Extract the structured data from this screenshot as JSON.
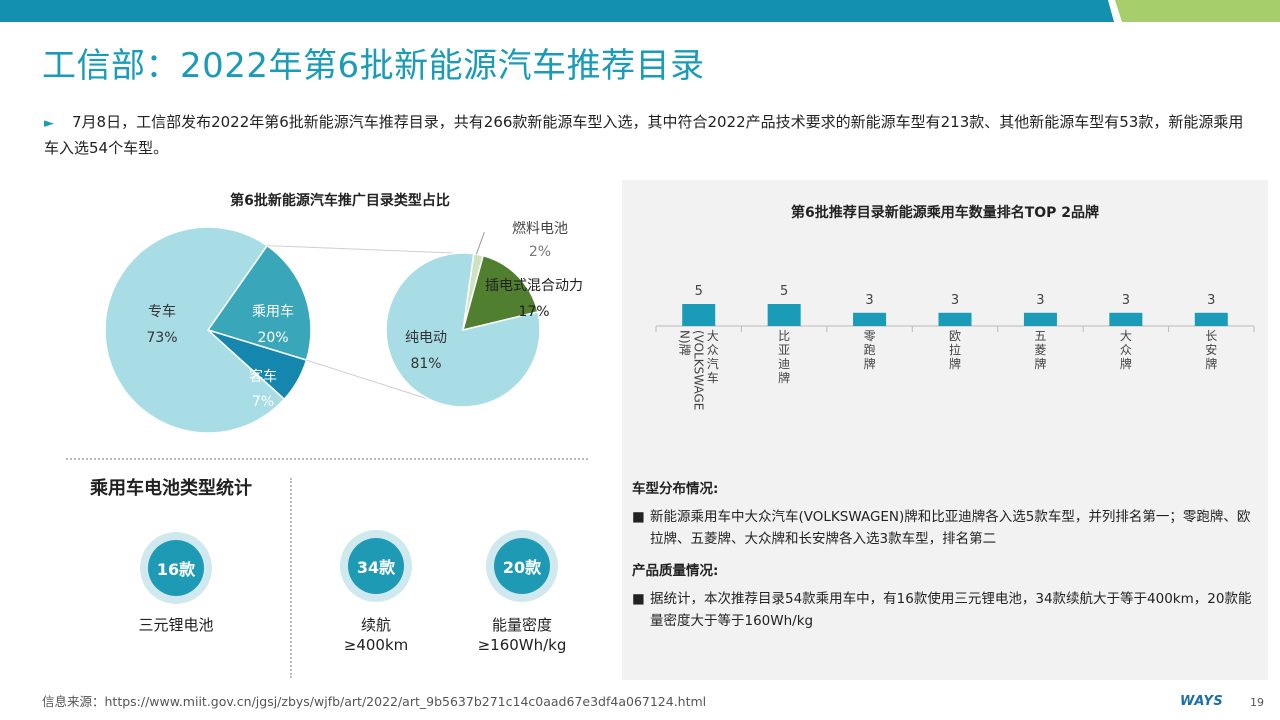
{
  "header": {
    "title": "工信部：2022年第6批新能源汽车推荐目录",
    "colors": {
      "accent": "#1a9bb8",
      "bar_dark": "#138fb0",
      "bar_light": "#9ed37d"
    }
  },
  "intro": {
    "bullet_icon": "triangle-right-icon",
    "text": "7月8日，工信部发布2022年第6批新能源汽车推荐目录，共有266款新能源车型入选，其中符合2022产品技术要求的新能源车型有213款、其他新能源车型有53款，新能源乘用车入选54个车型。"
  },
  "chart_data": [
    {
      "type": "pie",
      "title": "第6批新能源汽车推广目录类型占比",
      "slices": [
        {
          "label": "专车",
          "value": 73,
          "display": "73%",
          "color": "#a9dde6"
        },
        {
          "label": "乘用车",
          "value": 20,
          "display": "20%",
          "color": "#3aa6b9"
        },
        {
          "label": "客车",
          "value": 7,
          "display": "7%",
          "color": "#1586ad"
        }
      ]
    },
    {
      "type": "pie",
      "title": "",
      "slices": [
        {
          "label": "纯电动",
          "value": 81,
          "display": "81%",
          "color": "#a9dde6"
        },
        {
          "label": "插电式混合动力",
          "value": 17,
          "display": "17%",
          "color": "#4f7f2f"
        },
        {
          "label": "燃料电池",
          "value": 2,
          "display": "2%",
          "color": "#cfe3c0"
        }
      ]
    },
    {
      "type": "bar",
      "title": "第6批推荐目录新能源乘用车数量排名TOP 2品牌",
      "categories": [
        "大众汽车(VOLKSWAGEN)牌",
        "比亚迪牌",
        "零跑牌",
        "欧拉牌",
        "五菱牌",
        "大众牌",
        "长安牌"
      ],
      "tick_lines": [
        [
          "大众汽车",
          "(VOLKSWAGE",
          "N)牌"
        ],
        [
          "比亚迪牌"
        ],
        [
          "零跑牌"
        ],
        [
          "欧拉牌"
        ],
        [
          "五菱牌"
        ],
        [
          "大众牌"
        ],
        [
          "长安牌"
        ]
      ],
      "values": [
        5,
        5,
        3,
        3,
        3,
        3,
        3
      ],
      "color": "#1a9bb8",
      "xlabel": "",
      "ylabel": ""
    }
  ],
  "battery": {
    "title": "乘用车电池类型统计",
    "items": [
      {
        "value": "16款",
        "label": "三元锂电池"
      },
      {
        "value": "34款",
        "label": "续航\n≥400km"
      },
      {
        "value": "20款",
        "label": "能量密度\n≥160Wh/kg"
      }
    ]
  },
  "distribution": {
    "heading1": "车型分布情况:",
    "item1": "新能源乘用车中大众汽车(VOLKSWAGEN)牌和比亚迪牌各入选5款车型，并列排名第一；零跑牌、欧拉牌、五菱牌、大众牌和长安牌各入选3款车型，排名第二",
    "heading2": "产品质量情况:",
    "item2": "据统计，本次推荐目录54款乘用车中，有16款使用三元锂电池，34款续航大于等于400km，20款能量密度大于等于160Wh/kg",
    "bullet_icon": "square-bullet-icon"
  },
  "footer": {
    "source": "信息来源：https://www.miit.gov.cn/jgsj/zbys/wjfb/art/2022/art_9b5637b271c14c0aad67e3df4a067124.html",
    "logo": "WAYS",
    "page": "19"
  }
}
